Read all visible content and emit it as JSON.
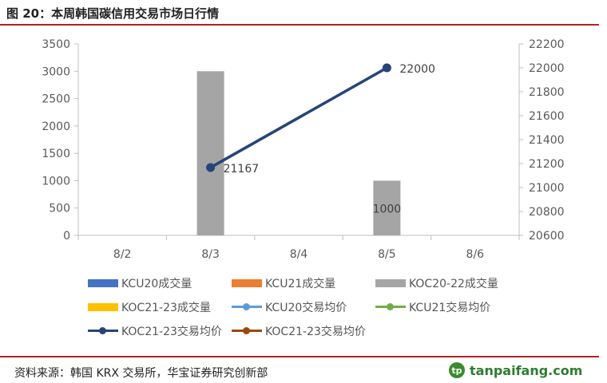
{
  "figure": {
    "title": "图 20：本周韩国碳信用交易市场日行情",
    "source": "资料来源：韩国 KRX 交易所，华宝证券研究创新部",
    "watermark": "tanpaifang.com",
    "watermark_icon": "leaf-logo-icon"
  },
  "chart_data": {
    "type": "bar",
    "categories": [
      "8/2",
      "8/3",
      "8/4",
      "8/5",
      "8/6"
    ],
    "y_left": {
      "range": [
        0,
        3500
      ],
      "ticks": [
        "0",
        "500",
        "1000",
        "1500",
        "2000",
        "2500",
        "3000",
        "3500"
      ]
    },
    "y_right": {
      "range": [
        20600,
        22200
      ],
      "ticks": [
        "20600",
        "20800",
        "21000",
        "21200",
        "21400",
        "21600",
        "21800",
        "22000",
        "22200"
      ]
    },
    "grid": false,
    "legend_position": "bottom",
    "bar_series": [
      {
        "name": "KCU20成交量",
        "color": "#4472c4",
        "values": [
          null,
          null,
          null,
          null,
          null
        ]
      },
      {
        "name": "KCU21成交量",
        "color": "#ed7d31",
        "values": [
          null,
          null,
          null,
          null,
          null
        ]
      },
      {
        "name": "KOC20-22成交量",
        "color": "#a5a5a5",
        "values": [
          null,
          3000,
          null,
          1000,
          null
        ],
        "labels": [
          "",
          "",
          "",
          "1000",
          ""
        ]
      },
      {
        "name": "KOC21-23成交量",
        "color": "#ffc000",
        "values": [
          null,
          null,
          null,
          null,
          null
        ]
      }
    ],
    "line_series": [
      {
        "name": "KCU20交易均价",
        "color": "#5b9bd5",
        "axis": "right",
        "values": [
          null,
          null,
          null,
          null,
          null
        ]
      },
      {
        "name": "KCU21交易均价",
        "color": "#70ad47",
        "axis": "right",
        "values": [
          null,
          null,
          null,
          null,
          null
        ]
      },
      {
        "name": "KOC21-23交易均价",
        "color": "#264478",
        "axis": "right",
        "values": [
          null,
          21167,
          null,
          22000,
          null
        ],
        "labels": [
          "",
          "21167",
          "",
          "22000",
          ""
        ]
      },
      {
        "name": "KOC21-23交易均价",
        "color": "#9e480e",
        "axis": "right",
        "values": [
          null,
          null,
          null,
          null,
          null
        ]
      }
    ]
  }
}
